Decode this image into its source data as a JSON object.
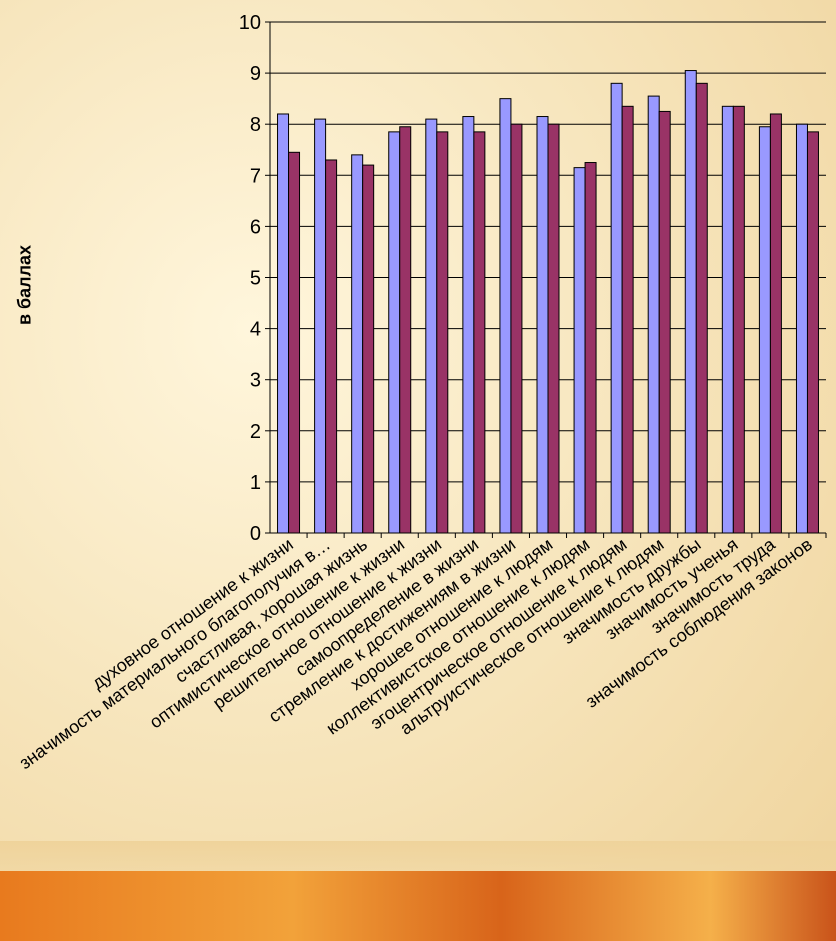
{
  "chart_data": {
    "type": "bar",
    "ylabel": "в баллах",
    "ylim": [
      0,
      10
    ],
    "yticks": [
      0,
      1,
      2,
      3,
      4,
      5,
      6,
      7,
      8,
      9,
      10
    ],
    "categories": [
      "духовное отношение к жизни",
      "значимость материального благополучия в…",
      "счастливая, хорошая жизнь",
      "оптимистическое отношение к жизни",
      "решительное отношение к жизни",
      "самоопределение в жизни",
      "стремление к достижениям в жизни",
      "хорошее отношение к людям",
      "коллективистское отношение к людям",
      "эгоцентрическое отношение к людям",
      "альтруистическое отношение к людям",
      "значимость дружбы",
      "значимость ученья",
      "значимость труда",
      "значимость соблюдения законов"
    ],
    "series": [
      {
        "values": [
          8.2,
          8.1,
          7.4,
          7.85,
          8.1,
          8.15,
          8.5,
          8.15,
          7.15,
          8.8,
          8.55,
          9.05,
          8.35,
          7.95,
          8.0
        ]
      },
      {
        "values": [
          7.45,
          7.3,
          7.2,
          7.95,
          7.85,
          7.85,
          8.0,
          8.0,
          7.25,
          8.35,
          8.25,
          8.8,
          8.35,
          8.2,
          7.85
        ]
      }
    ],
    "colors": [
      "#9999ff",
      "#993366"
    ],
    "grid": true
  }
}
